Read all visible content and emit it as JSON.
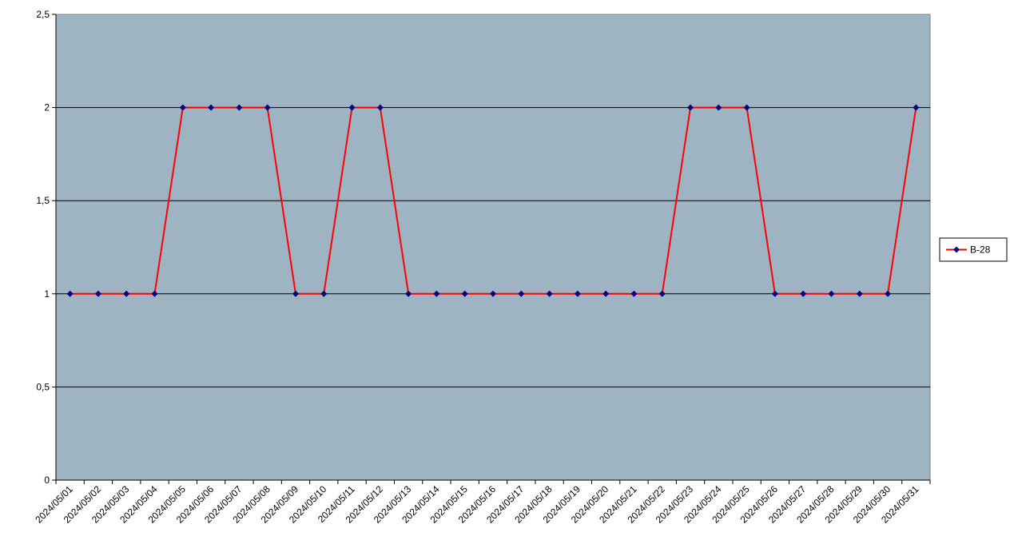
{
  "chart_data": {
    "type": "line",
    "title": "",
    "xlabel": "",
    "ylabel": "",
    "x": [
      "2024/05/01",
      "2024/05/02",
      "2024/05/03",
      "2024/05/04",
      "2024/05/05",
      "2024/05/06",
      "2024/05/07",
      "2024/05/08",
      "2024/05/09",
      "2024/05/10",
      "2024/05/11",
      "2024/05/12",
      "2024/05/13",
      "2024/05/14",
      "2024/05/15",
      "2024/05/16",
      "2024/05/17",
      "2024/05/18",
      "2024/05/19",
      "2024/05/20",
      "2024/05/21",
      "2024/05/22",
      "2024/05/23",
      "2024/05/24",
      "2024/05/25",
      "2024/05/26",
      "2024/05/27",
      "2024/05/28",
      "2024/05/29",
      "2024/05/30",
      "2024/05/31"
    ],
    "series": [
      {
        "name": "B-28",
        "values": [
          1,
          1,
          1,
          1,
          2,
          2,
          2,
          2,
          1,
          1,
          2,
          2,
          1,
          1,
          1,
          1,
          1,
          1,
          1,
          1,
          1,
          1,
          2,
          2,
          2,
          1,
          1,
          1,
          1,
          1,
          2
        ]
      }
    ],
    "ylim": [
      0,
      2.5
    ],
    "yticks": [
      "0",
      "0,5",
      "1",
      "1,5",
      "2",
      "2,5"
    ],
    "ytick_values": [
      0,
      0.5,
      1,
      1.5,
      2,
      2.5
    ],
    "grid": true,
    "legend_position": "right",
    "colors": {
      "plot_background": "#9fb4c2",
      "line": "#ff0000",
      "marker": "#000080",
      "gridline": "#000000"
    }
  }
}
